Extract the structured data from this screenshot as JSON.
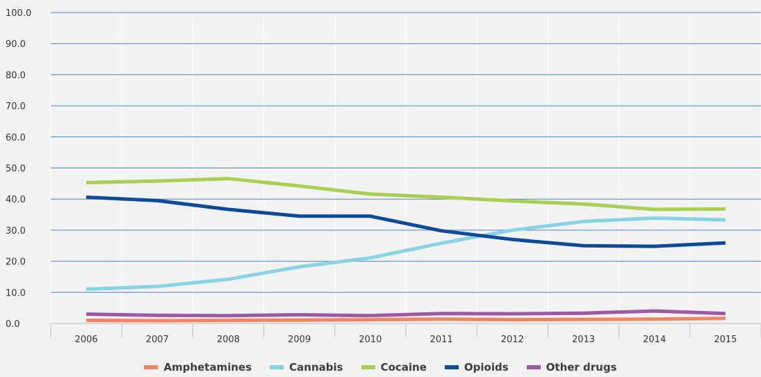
{
  "chart_data": {
    "type": "line",
    "x": [
      "2006",
      "2007",
      "2008",
      "2009",
      "2010",
      "2011",
      "2012",
      "2013",
      "2014",
      "2015"
    ],
    "ylim": [
      0,
      100
    ],
    "yticks": [
      "0.0",
      "10.0",
      "20.0",
      "30.0",
      "40.0",
      "50.0",
      "60.0",
      "70.0",
      "80.0",
      "90.0",
      "100.0"
    ],
    "grid": true,
    "legend_position": "bottom",
    "series": [
      {
        "name": "Amphetamines",
        "color": "#f4845f",
        "values": [
          1.0,
          0.9,
          1.0,
          1.1,
          1.2,
          1.4,
          1.2,
          1.3,
          1.4,
          1.6
        ]
      },
      {
        "name": "Cannabis",
        "color": "#87d3e3",
        "values": [
          11.0,
          11.9,
          14.2,
          18.2,
          21.1,
          25.8,
          30.0,
          32.8,
          33.9,
          33.3
        ]
      },
      {
        "name": "Cocaine",
        "color": "#a8cf52",
        "values": [
          45.3,
          45.8,
          46.6,
          44.2,
          41.6,
          40.6,
          39.4,
          38.4,
          36.7,
          36.8
        ]
      },
      {
        "name": "Opioids",
        "color": "#0e4a9a",
        "values": [
          40.6,
          39.5,
          36.7,
          34.5,
          34.5,
          29.8,
          27.0,
          25.0,
          24.8,
          25.9
        ]
      },
      {
        "name": "Other drugs",
        "color": "#9b59a6",
        "values": [
          3.0,
          2.6,
          2.5,
          2.8,
          2.5,
          3.2,
          3.1,
          3.3,
          4.0,
          3.2
        ]
      }
    ]
  }
}
